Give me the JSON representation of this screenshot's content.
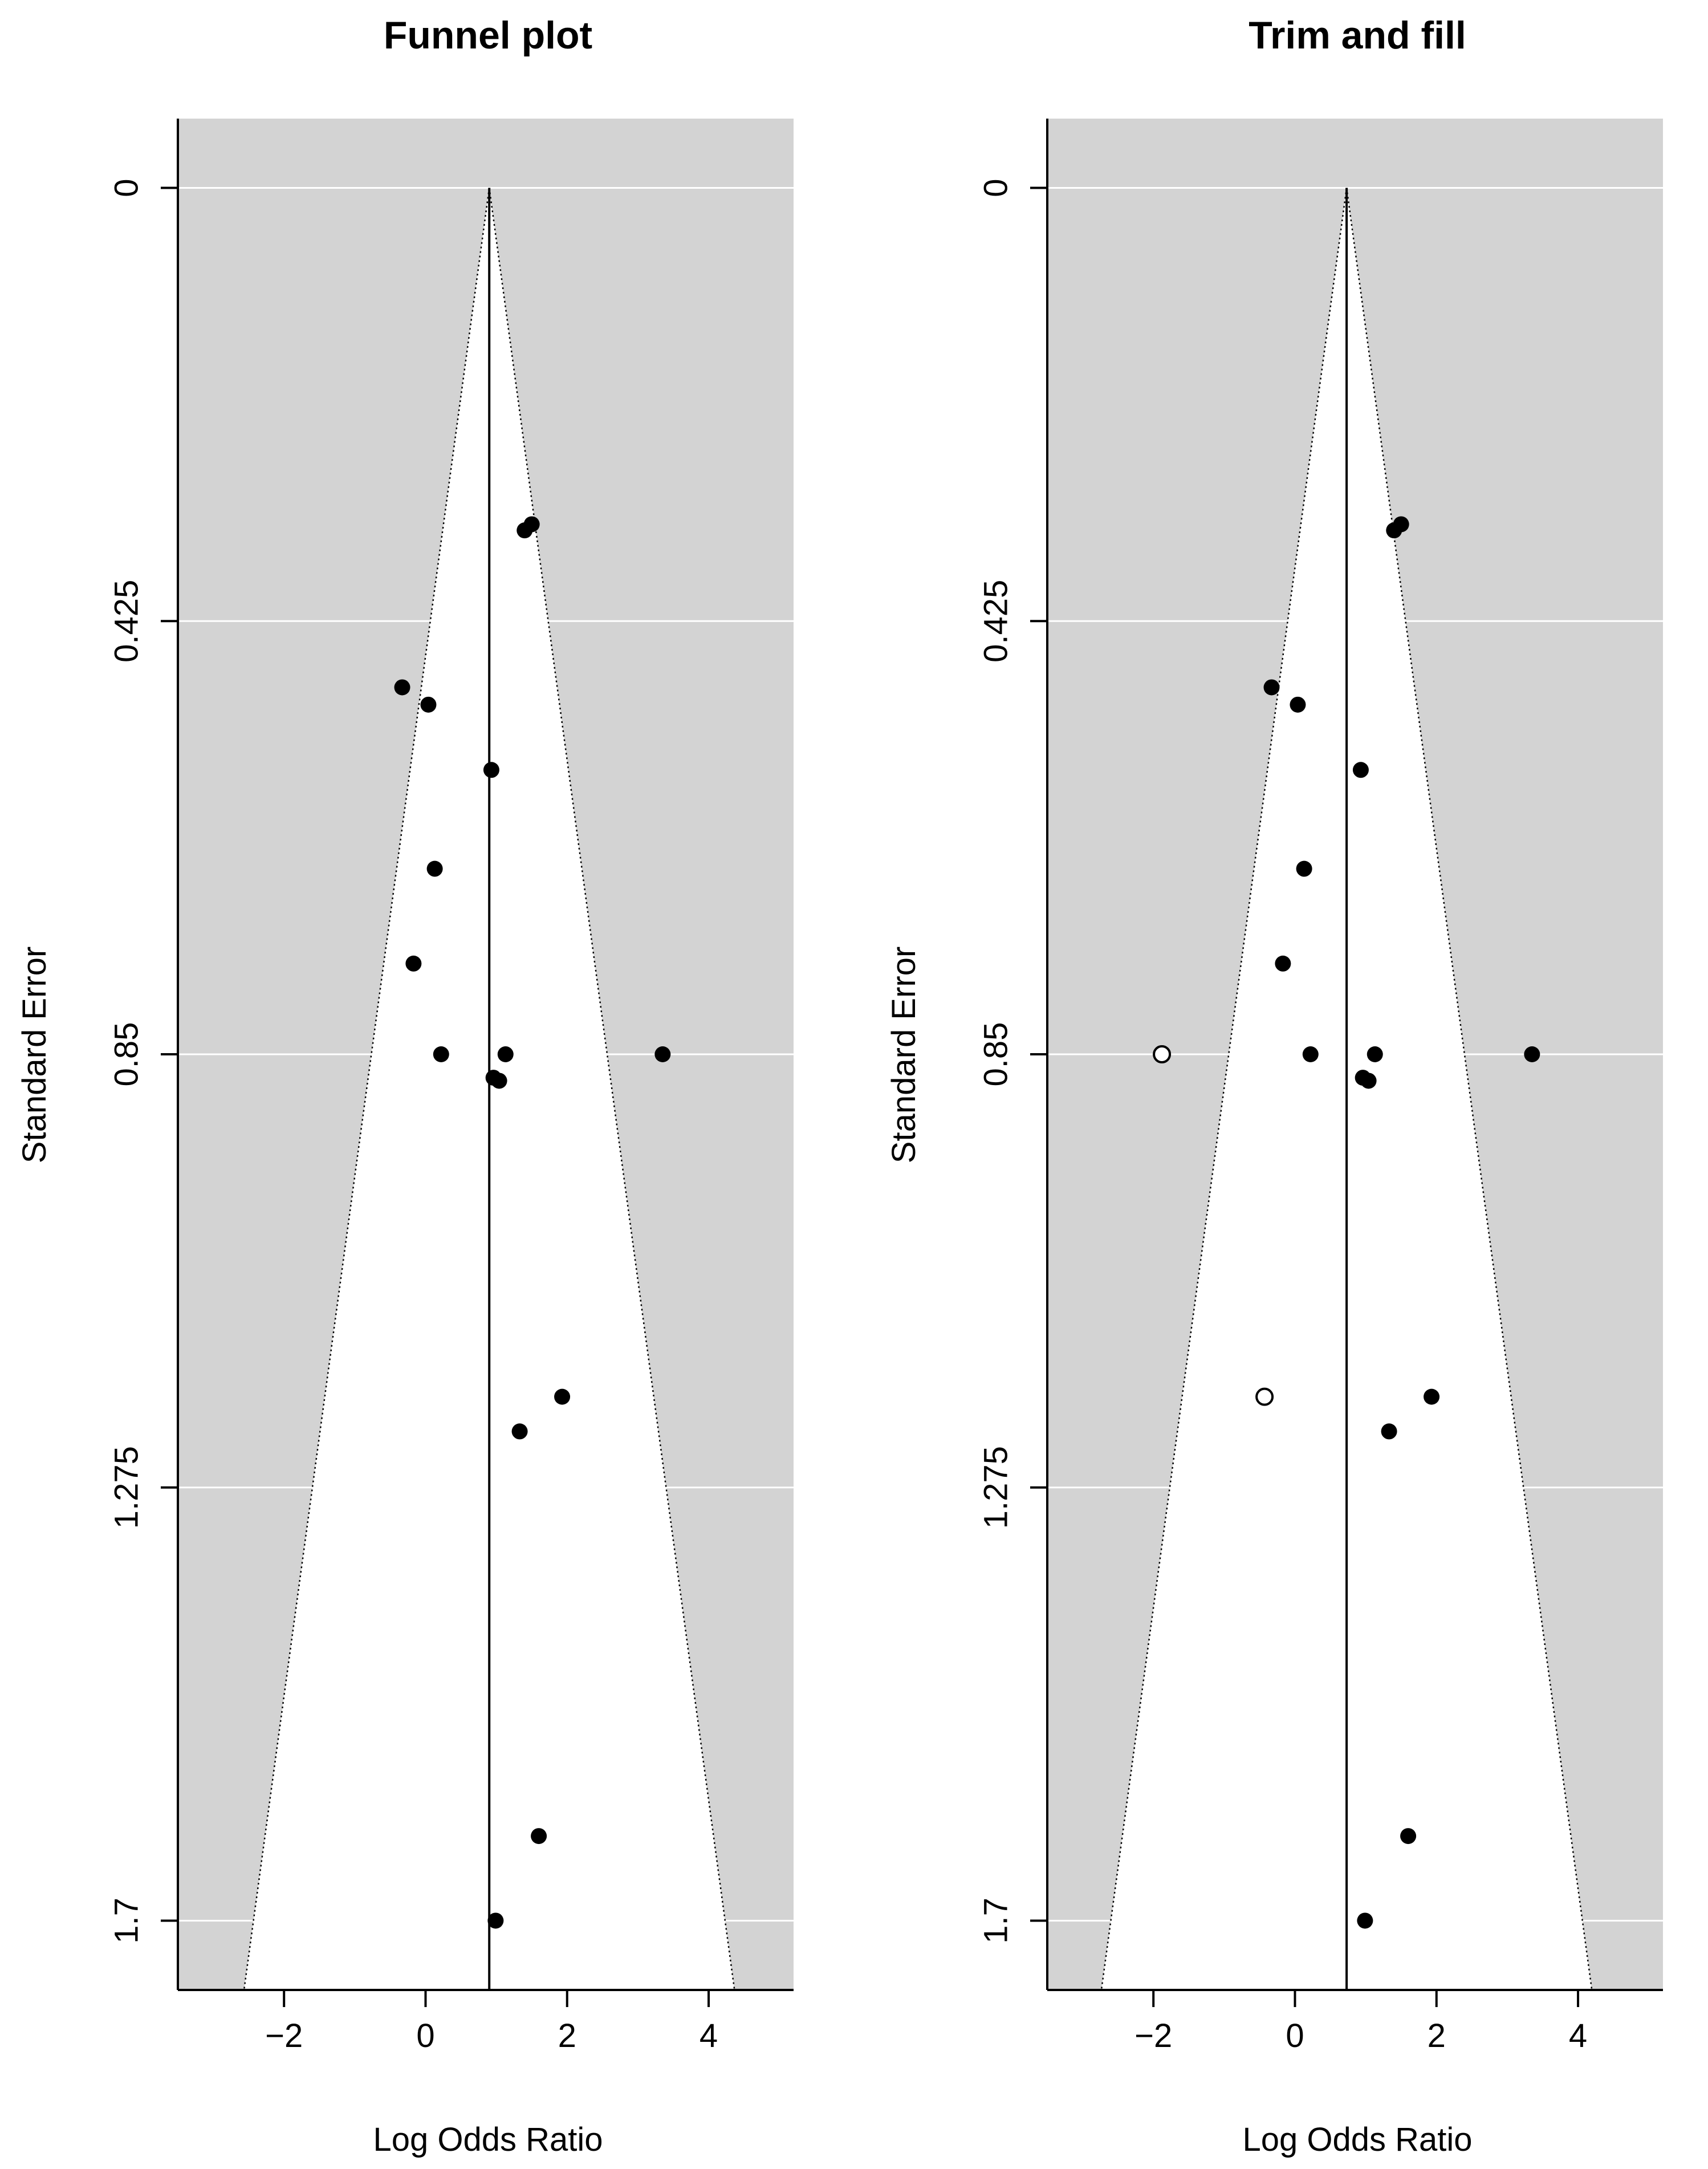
{
  "chart_data": [
    {
      "type": "scatter",
      "title": "Funnel plot",
      "xlabel": "Log Odds Ratio",
      "ylabel": "Standard Error",
      "xlim": [
        -3.5,
        5.2
      ],
      "ylim": [
        1.768,
        -0.068
      ],
      "y_reversed": true,
      "xticks": [
        -2,
        0,
        2,
        4
      ],
      "xtick_labels": [
        "−2",
        "0",
        "2",
        "4"
      ],
      "yticks": [
        0,
        0.425,
        0.85,
        1.275,
        1.7
      ],
      "ytick_labels": [
        "0",
        "0.425",
        "0.85",
        "1.275",
        "1.7"
      ],
      "grid": "horizontal",
      "colors": {
        "background": "#d3d3d3",
        "funnel": "#ffffff",
        "gridline": "#ffffff",
        "points_observed": "#000000"
      },
      "center_estimate": 0.9,
      "funnel_z": 1.96,
      "series": [
        {
          "filled": true,
          "points": [
            {
              "x": 1.5,
              "y": 0.33
            },
            {
              "x": 1.4,
              "y": 0.336
            },
            {
              "x": -0.33,
              "y": 0.49
            },
            {
              "x": 0.04,
              "y": 0.507
            },
            {
              "x": 0.93,
              "y": 0.571
            },
            {
              "x": 0.13,
              "y": 0.668
            },
            {
              "x": -0.17,
              "y": 0.761
            },
            {
              "x": 0.22,
              "y": 0.85
            },
            {
              "x": 1.13,
              "y": 0.85
            },
            {
              "x": 3.35,
              "y": 0.85
            },
            {
              "x": 0.96,
              "y": 0.873
            },
            {
              "x": 1.04,
              "y": 0.876
            },
            {
              "x": 1.93,
              "y": 1.186
            },
            {
              "x": 1.33,
              "y": 1.22
            },
            {
              "x": 1.6,
              "y": 1.617
            },
            {
              "x": 0.99,
              "y": 1.7
            }
          ]
        }
      ]
    },
    {
      "type": "scatter",
      "title": "Trim and fill",
      "xlabel": "Log Odds Ratio",
      "ylabel": "Standard Error",
      "xlim": [
        -3.5,
        5.2
      ],
      "ylim": [
        1.768,
        -0.068
      ],
      "y_reversed": true,
      "xticks": [
        -2,
        0,
        2,
        4
      ],
      "xtick_labels": [
        "−2",
        "0",
        "2",
        "4"
      ],
      "yticks": [
        0,
        0.425,
        0.85,
        1.275,
        1.7
      ],
      "ytick_labels": [
        "0",
        "0.425",
        "0.85",
        "1.275",
        "1.7"
      ],
      "grid": "horizontal",
      "colors": {
        "background": "#d3d3d3",
        "funnel": "#ffffff",
        "gridline": "#ffffff",
        "points_observed": "#000000",
        "points_filled": "#ffffff"
      },
      "center_estimate": 0.73,
      "funnel_z": 1.96,
      "series": [
        {
          "filled": true,
          "points": [
            {
              "x": 1.5,
              "y": 0.33
            },
            {
              "x": 1.4,
              "y": 0.336
            },
            {
              "x": -0.33,
              "y": 0.49
            },
            {
              "x": 0.04,
              "y": 0.507
            },
            {
              "x": 0.93,
              "y": 0.571
            },
            {
              "x": 0.13,
              "y": 0.668
            },
            {
              "x": -0.17,
              "y": 0.761
            },
            {
              "x": 0.22,
              "y": 0.85
            },
            {
              "x": 1.13,
              "y": 0.85
            },
            {
              "x": 3.35,
              "y": 0.85
            },
            {
              "x": 0.96,
              "y": 0.873
            },
            {
              "x": 1.04,
              "y": 0.876
            },
            {
              "x": 1.93,
              "y": 1.186
            },
            {
              "x": 1.33,
              "y": 1.22
            },
            {
              "x": 1.6,
              "y": 1.617
            },
            {
              "x": 0.99,
              "y": 1.7
            }
          ]
        },
        {
          "filled": false,
          "points": [
            {
              "x": -1.88,
              "y": 0.85
            },
            {
              "x": -0.43,
              "y": 1.186
            }
          ]
        }
      ]
    }
  ]
}
